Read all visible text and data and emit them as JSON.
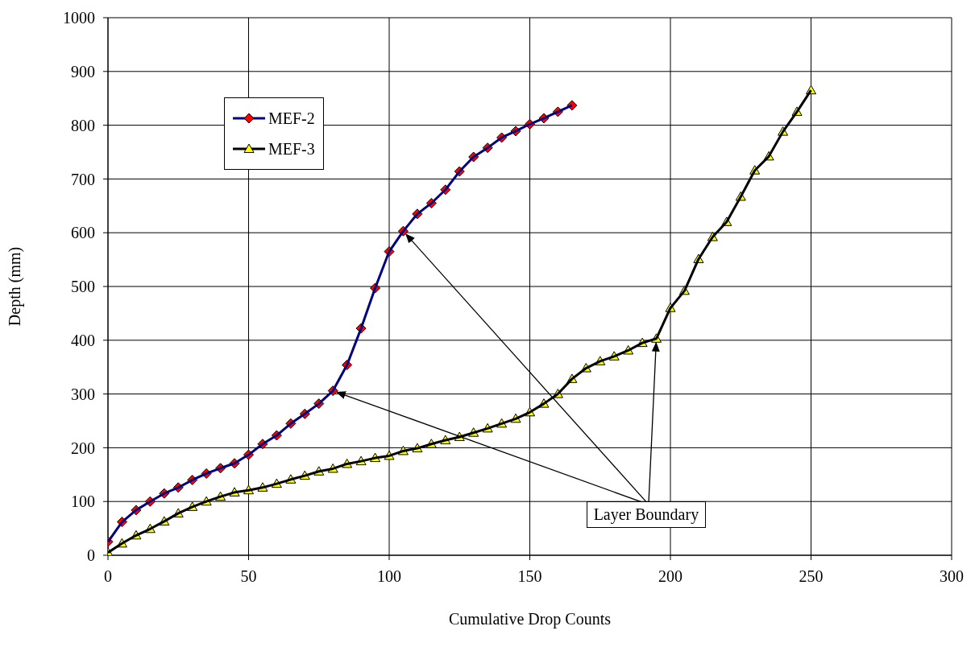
{
  "chart_data": {
    "type": "line",
    "xlabel": "Cumulative Drop Counts",
    "ylabel": "Depth (mm)",
    "xlim": [
      0,
      300
    ],
    "xticks": [
      0,
      50,
      100,
      150,
      200,
      250,
      300
    ],
    "ylim": [
      0,
      1000
    ],
    "yticks": [
      0,
      100,
      200,
      300,
      400,
      500,
      600,
      700,
      800,
      900,
      1000
    ],
    "grid": true,
    "legend": "top left",
    "line_style": "solid",
    "annotations": [
      {
        "text": "Layer Boundary",
        "x": 80,
        "y": 306
      }
    ],
    "series": [
      {
        "name": "MEF-2",
        "color": "#000080",
        "marker": "diamond",
        "x": [
          0,
          5,
          10,
          15,
          20,
          25,
          30,
          35,
          40,
          45,
          50,
          55,
          60,
          65,
          70,
          75,
          80,
          85,
          90,
          95,
          100,
          105,
          110,
          115,
          120,
          125,
          130,
          135,
          140,
          145,
          150,
          155,
          160,
          165
        ],
        "values": [
          25,
          62,
          84,
          100,
          115,
          126,
          140,
          152,
          162,
          171,
          187,
          207,
          223,
          245,
          263,
          282,
          306,
          354,
          422,
          497,
          565,
          603,
          635,
          655,
          680,
          714,
          741,
          758,
          777,
          789,
          802,
          813,
          825,
          837
        ]
      },
      {
        "name": "MEF-3",
        "color": "#000000",
        "marker": "triangle",
        "x": [
          0,
          5,
          10,
          15,
          20,
          25,
          30,
          35,
          40,
          45,
          50,
          55,
          60,
          65,
          70,
          75,
          80,
          85,
          90,
          95,
          100,
          105,
          110,
          115,
          120,
          125,
          130,
          135,
          140,
          145,
          150,
          155,
          160,
          165,
          170,
          175,
          180,
          185,
          190,
          195,
          200,
          205,
          210,
          215,
          220,
          225,
          230,
          235,
          240,
          245,
          250
        ],
        "values": [
          5,
          22,
          37,
          49,
          63,
          78,
          90,
          100,
          109,
          117,
          121,
          126,
          133,
          141,
          148,
          156,
          161,
          170,
          175,
          181,
          185,
          194,
          199,
          207,
          214,
          220,
          228,
          236,
          245,
          254,
          266,
          282,
          300,
          328,
          348,
          361,
          370,
          381,
          395,
          403,
          460,
          492,
          551,
          592,
          620,
          667,
          716,
          742,
          788,
          825,
          865
        ]
      }
    ]
  }
}
